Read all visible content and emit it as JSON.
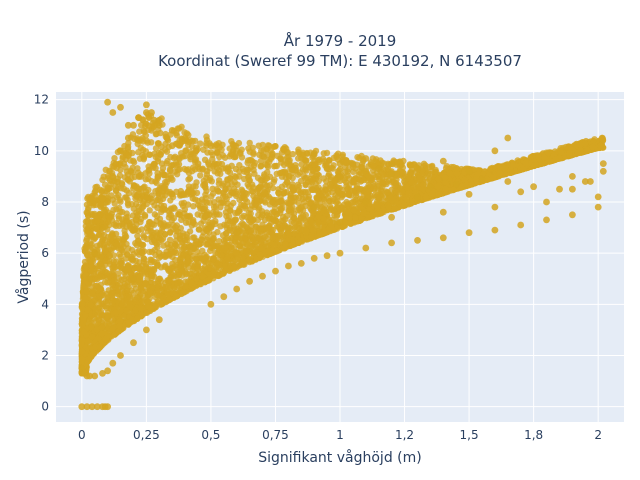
{
  "chart_data": {
    "type": "scatter",
    "title_line1": "År 1979 - 2019",
    "title_line2": "Koordinat (Sweref 99 TM): E 430192, N 6143507",
    "xlabel": "Signifikant våghöjd (m)",
    "ylabel": "Vågperiod (s)",
    "xlim": [
      -0.1,
      2.1
    ],
    "ylim": [
      -0.6,
      12.3
    ],
    "x_ticks": [
      0,
      0.25,
      0.5,
      0.75,
      1,
      1.25,
      1.5,
      1.75,
      2
    ],
    "x_tick_labels": [
      "0",
      "0,25",
      "0,5",
      "0,75",
      "1",
      "1,2",
      "1,5",
      "1,8",
      "2"
    ],
    "y_ticks": [
      0,
      2,
      4,
      6,
      8,
      10,
      12
    ],
    "y_tick_labels": [
      "0",
      "2",
      "4",
      "6",
      "8",
      "10",
      "12"
    ],
    "grid": true,
    "background": "#e5ecf6",
    "marker_color": "#d4a520",
    "series": [
      {
        "x": [
          0.0,
          0.02,
          0.04,
          0.06,
          0.08,
          0.1,
          0.09,
          0.0,
          0.01,
          0.02,
          0.03,
          0.05,
          0.08,
          0.1,
          0.12,
          0.15,
          0.2,
          0.25,
          0.3,
          0.03,
          0.05,
          0.08,
          0.1,
          0.12,
          0.15,
          0.18,
          0.2,
          0.22,
          0.25,
          0.28,
          0.3,
          0.33,
          0.35,
          0.4,
          0.45,
          0.5,
          0.55,
          0.6,
          0.65,
          0.7,
          0.75,
          0.8,
          0.85,
          0.9,
          0.95,
          1.0,
          1.1,
          1.2,
          1.3,
          1.4,
          1.5,
          1.6,
          1.7,
          1.8,
          1.9,
          2.0,
          0.3,
          0.5,
          0.7,
          0.9,
          1.1,
          1.3,
          1.5,
          1.7,
          1.9,
          0.2,
          0.4,
          0.6,
          0.8,
          1.0,
          1.2,
          1.4,
          1.6,
          1.8,
          2.0,
          1.0,
          1.05,
          1.15,
          1.2,
          1.25,
          1.35,
          1.45,
          1.55,
          1.65,
          1.75,
          1.85,
          1.95,
          2.02,
          0.1,
          0.12,
          0.15,
          0.18,
          0.22,
          0.25,
          0.27,
          0.3,
          0.35,
          0.4,
          0.5,
          0.6,
          0.7,
          0.8,
          0.9,
          1.0,
          1.1,
          1.2,
          1.3,
          1.4,
          1.5,
          1.6,
          1.65,
          1.9,
          1.97,
          2.02
        ],
        "y": [
          0.0,
          0.0,
          0.0,
          0.0,
          0.0,
          0.0,
          0.0,
          1.5,
          1.3,
          1.2,
          1.2,
          1.2,
          1.3,
          1.4,
          1.7,
          2.0,
          2.5,
          3.0,
          3.4,
          5.0,
          6.0,
          7.0,
          8.0,
          9.0,
          10.0,
          10.5,
          11.0,
          11.3,
          11.5,
          11.2,
          11.0,
          10.5,
          10.2,
          9.8,
          9.5,
          4.0,
          4.3,
          4.6,
          4.9,
          5.1,
          5.3,
          5.5,
          5.6,
          5.8,
          5.9,
          6.0,
          6.2,
          6.4,
          6.5,
          6.6,
          6.8,
          6.9,
          7.1,
          7.3,
          7.5,
          7.8,
          6.0,
          7.0,
          7.5,
          7.8,
          8.0,
          8.2,
          8.3,
          8.4,
          8.5,
          5.0,
          6.5,
          6.8,
          7.0,
          7.2,
          7.4,
          7.6,
          7.8,
          8.0,
          8.2,
          9.0,
          9.5,
          9.3,
          9.1,
          8.8,
          8.6,
          8.7,
          8.9,
          8.8,
          8.6,
          8.5,
          8.8,
          9.5,
          11.9,
          11.5,
          11.7,
          11.0,
          11.3,
          11.8,
          11.5,
          11.2,
          10.8,
          10.5,
          10.2,
          10.0,
          9.8,
          9.6,
          9.9,
          9.5,
          9.7,
          9.5,
          9.3,
          9.6,
          9.2,
          10.0,
          10.5,
          9.0,
          8.8,
          9.2
        ]
      }
    ]
  }
}
